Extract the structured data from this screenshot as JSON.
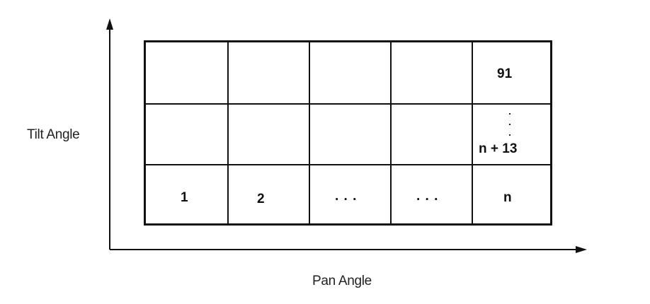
{
  "diagram": {
    "axes": {
      "y_label": "Tilt Angle",
      "x_label": "Pan Angle"
    },
    "grid": {
      "rows": 3,
      "columns": 5,
      "cells": {
        "top_right": "91",
        "middle_right": "n + 13",
        "bottom": [
          "1",
          "2",
          ". . .",
          ". . .",
          "n"
        ]
      }
    },
    "colors": {
      "line": "#111111",
      "background": "#ffffff"
    }
  }
}
